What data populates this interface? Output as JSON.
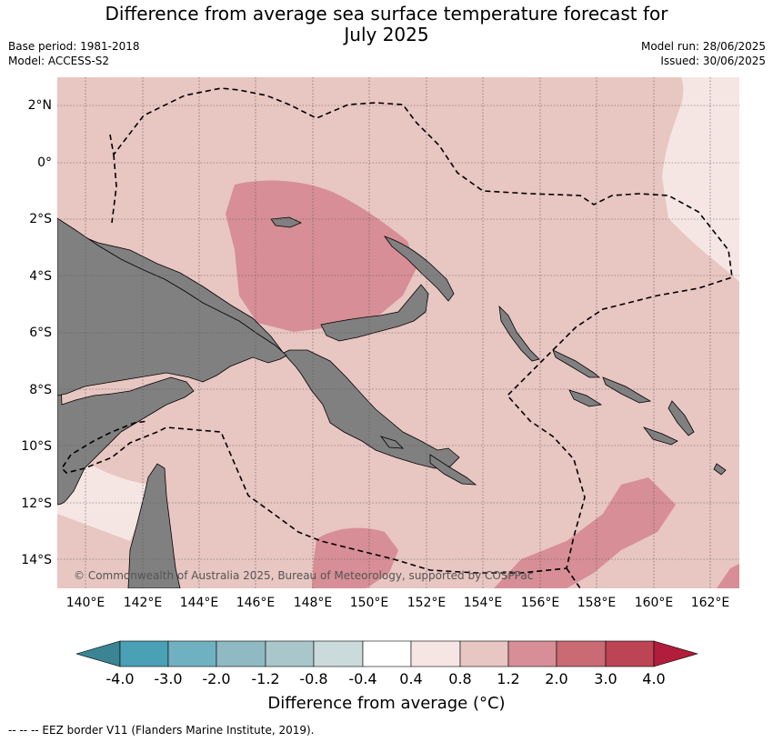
{
  "header": {
    "title_line1": "Difference from average sea surface temperature forecast for",
    "title_line2": "July 2025",
    "base_period": "Base period: 1981-2018",
    "model": "Model: ACCESS-S2",
    "model_run": "Model run: 28/06/2025",
    "issued": "Issued: 30/06/2025"
  },
  "map": {
    "lat_ticks": [
      "2°N",
      "0°",
      "2°S",
      "4°S",
      "6°S",
      "8°S",
      "10°S",
      "12°S",
      "14°S"
    ],
    "lon_ticks": [
      "140°E",
      "142°E",
      "144°E",
      "146°E",
      "148°E",
      "150°E",
      "152°E",
      "154°E",
      "156°E",
      "158°E",
      "160°E",
      "162°E"
    ],
    "copyright": "© Commonwealth of Australia 2025, Bureau of Meteorology, supported by COSPPac",
    "colors": {
      "land": "#808080",
      "field_0_4_0_8": "#f5e6e3",
      "field_0_8_1_2": "#e8c6c2",
      "field_1_2_2_0": "#d78e96"
    }
  },
  "colorbar": {
    "labels": [
      "-4.0",
      "-3.0",
      "-2.0",
      "-1.2",
      "-0.8",
      "-0.4",
      "0.4",
      "0.8",
      "1.2",
      "2.0",
      "3.0",
      "4.0"
    ],
    "colors": [
      "#4aa0b5",
      "#6fb1c1",
      "#8fbac4",
      "#a9c7cb",
      "#cbdadb",
      "#ffffff",
      "#f5e6e3",
      "#e8c6c2",
      "#d78e96",
      "#c96a74",
      "#bd4454"
    ],
    "under_color": "#3a8494",
    "over_color": "#b11d3a",
    "title": "Difference from average (°C)"
  },
  "footnote": "--  --  -- EEZ border V11 (Flanders Marine Institute, 2019)."
}
